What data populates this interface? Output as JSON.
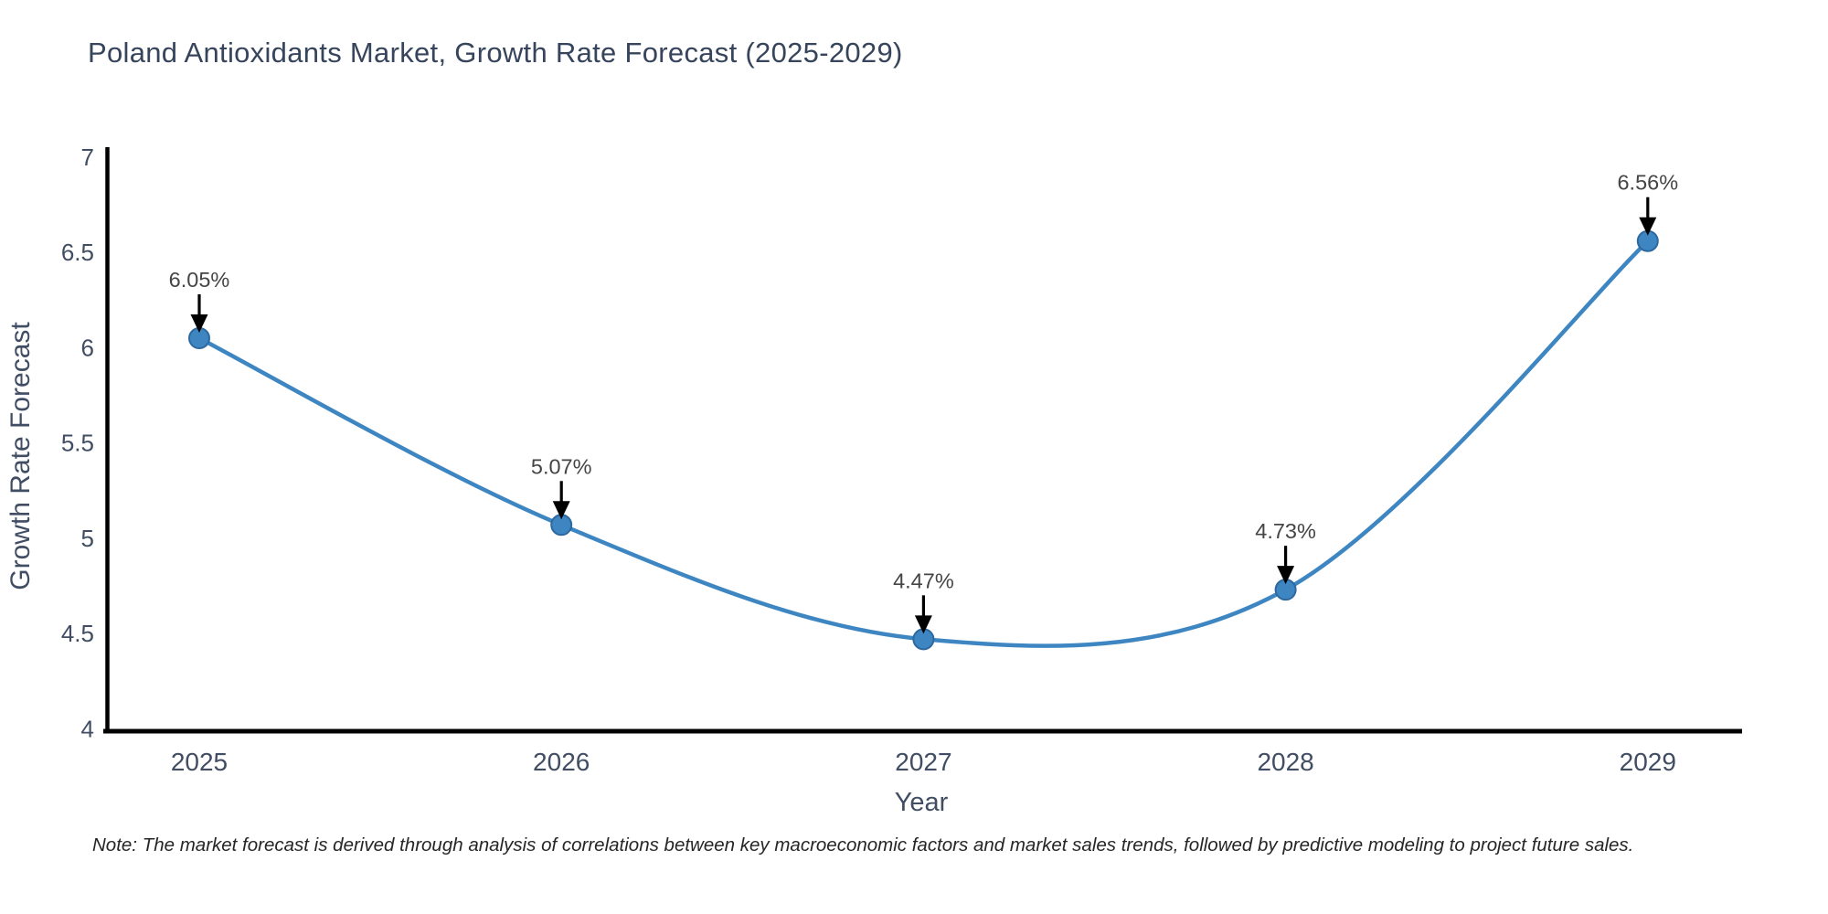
{
  "chart_data": {
    "type": "line",
    "title": "Poland Antioxidants Market, Growth Rate Forecast (2025-2029)",
    "categories": [
      "2025",
      "2026",
      "2027",
      "2028",
      "2029"
    ],
    "series": [
      {
        "name": "Growth Rate Forecast",
        "values": [
          6.05,
          5.07,
          4.47,
          4.73,
          6.56
        ]
      }
    ],
    "point_labels": [
      "6.05%",
      "5.07%",
      "4.47%",
      "4.73%",
      "6.56%"
    ],
    "xlabel": "Year",
    "ylabel": "Growth Rate Forecast",
    "ylim": [
      4,
      7
    ],
    "yticks": [
      7,
      6.5,
      6,
      5.5,
      5,
      4.5,
      4
    ],
    "ytick_labels": [
      "7",
      "6.5",
      "6",
      "5.5",
      "5",
      "4.5",
      "4"
    ],
    "grid": false,
    "legend": null,
    "line_style": "smooth",
    "marker": "circle",
    "colors": {
      "line": "#3e86c2",
      "marker_fill": "#3e86c2",
      "marker_edge": "#2e689f",
      "axis": "#000000",
      "tick_text": "#414d63",
      "axis_label_text": "#414d63",
      "title_text": "#36445c",
      "annotation_text": "#454545",
      "annotation_arrow": "#000000",
      "note_text": "#262626",
      "background": "#ffffff"
    },
    "note": "Note: The market forecast is derived through analysis of correlations between key macroeconomic factors and market sales trends, followed by predictive modeling to project future sales."
  }
}
